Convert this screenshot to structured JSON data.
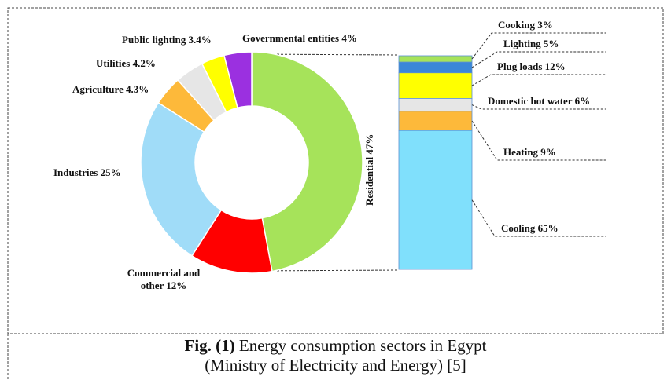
{
  "chart_data": [
    {
      "type": "pie",
      "donut": true,
      "values": [
        47,
        12,
        25,
        4.3,
        4.2,
        3.4,
        4
      ],
      "value_labels": [
        "Residential 47%",
        "Commercial and other 12%",
        "Industries 25%",
        "Agriculture 4.3%",
        "Utilities 4.2%",
        "Public lighting 3.4%",
        "Governmental entities 4%"
      ],
      "colors": [
        "#a6e35a",
        "#ff0000",
        "#a0dcf8",
        "#fdb93a",
        "#e6e6e6",
        "#ffff00",
        "#9b30e0"
      ]
    },
    {
      "type": "bar",
      "stacked": true,
      "values": [
        3,
        5,
        12,
        6,
        9,
        65
      ],
      "value_labels": [
        "Cooking 3%",
        "Lighting 5%",
        "Plug loads 12%",
        "Domestic hot water 6%",
        "Heating 9%",
        "Cooling 65%"
      ],
      "colors": [
        "#a6e35a",
        "#3a87d8",
        "#ffff00",
        "#e6e6e6",
        "#fdb93a",
        "#80e0fc"
      ]
    }
  ],
  "caption": {
    "label": "Fig. (1)",
    "text": "Energy consumption sectors in Egypt",
    "source": "(Ministry of Electricity and Energy) [5]"
  }
}
